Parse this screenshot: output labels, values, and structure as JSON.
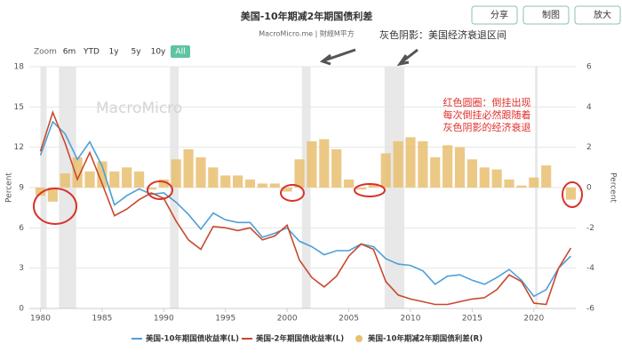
{
  "toolbar": [
    "分享",
    "制图",
    "放大"
  ],
  "zoom": {
    "label": "Zoom",
    "buttons": [
      "6m",
      "YTD",
      "1y",
      "5y",
      "10y",
      "All"
    ]
  },
  "watermark": "MacroMicro",
  "chart_data": {
    "type": "line",
    "title": "美国-10年期减2年期国债利差",
    "subtitle": "MacroMicro.me | 財經M平方",
    "x": [
      1980,
      1981,
      1982,
      1983,
      1984,
      1985,
      1986,
      1987,
      1988,
      1989,
      1990,
      1991,
      1992,
      1993,
      1994,
      1995,
      1996,
      1997,
      1998,
      1999,
      2000,
      2001,
      2002,
      2003,
      2004,
      2005,
      2006,
      2007,
      2008,
      2009,
      2010,
      2011,
      2012,
      2013,
      2014,
      2015,
      2016,
      2017,
      2018,
      2019,
      2020,
      2021,
      2022,
      2023
    ],
    "series": [
      {
        "name": "美国-10年期国债收益率(L)",
        "color": "#4e9fd8",
        "type": "line",
        "values": [
          11.4,
          13.9,
          13.0,
          11.1,
          12.4,
          10.6,
          7.7,
          8.4,
          8.9,
          8.5,
          8.6,
          7.9,
          7.0,
          5.9,
          7.1,
          6.6,
          6.4,
          6.4,
          5.3,
          5.6,
          6.0,
          5.0,
          4.6,
          4.0,
          4.3,
          4.3,
          4.8,
          4.6,
          3.7,
          3.3,
          3.2,
          2.8,
          1.8,
          2.4,
          2.5,
          2.1,
          1.8,
          2.3,
          2.9,
          2.1,
          0.9,
          1.4,
          3.0,
          3.9
        ]
      },
      {
        "name": "美国-2年期国债收益率(L)",
        "color": "#c8492e",
        "type": "line",
        "values": [
          11.7,
          14.6,
          12.3,
          9.6,
          11.6,
          9.3,
          6.9,
          7.4,
          8.1,
          8.6,
          8.2,
          6.5,
          5.1,
          4.4,
          6.1,
          6.0,
          5.8,
          6.0,
          5.1,
          5.4,
          6.2,
          3.6,
          2.3,
          1.6,
          2.4,
          3.9,
          4.8,
          4.4,
          2.0,
          1.0,
          0.7,
          0.5,
          0.3,
          0.3,
          0.5,
          0.7,
          0.8,
          1.4,
          2.5,
          2.0,
          0.4,
          0.3,
          3.0,
          4.5
        ]
      },
      {
        "name": "美国-10年期减2年期国债利差(R)",
        "color": "#e8c070",
        "type": "bar",
        "axis": "y2",
        "values": [
          -0.4,
          -0.7,
          0.7,
          1.5,
          0.8,
          1.3,
          0.8,
          1.0,
          0.8,
          -0.1,
          0.4,
          1.4,
          1.9,
          1.5,
          1.0,
          0.6,
          0.6,
          0.4,
          0.2,
          0.2,
          -0.2,
          1.4,
          2.3,
          2.4,
          1.9,
          0.4,
          -0.1,
          0.2,
          1.7,
          2.3,
          2.5,
          2.3,
          1.5,
          2.1,
          2.0,
          1.4,
          1.0,
          0.9,
          0.4,
          0.1,
          0.5,
          1.1,
          0.0,
          -0.6
        ]
      }
    ],
    "recessions": [
      [
        1980.0,
        1980.5
      ],
      [
        1981.5,
        1982.9
      ],
      [
        1990.5,
        1991.2
      ],
      [
        2001.2,
        2001.9
      ],
      [
        2007.9,
        2009.5
      ],
      [
        2020.1,
        2020.3
      ]
    ],
    "ylabel": "Percent",
    "y2label": "Percent",
    "xlim": [
      1979.1,
      2023.4
    ],
    "xticks": [
      1980,
      1985,
      1990,
      1995,
      2000,
      2005,
      2010,
      2015,
      2020
    ],
    "ylim": [
      0,
      18
    ],
    "yticks": [
      0,
      3,
      6,
      9,
      12,
      15,
      18
    ],
    "y2lim": [
      -6,
      6
    ],
    "y2ticks": [
      -6,
      -4,
      -2,
      0,
      2,
      4,
      6
    ],
    "grid": true,
    "annotations": {
      "gray": "灰色阴影：美国经济衰退区间",
      "red": [
        "红色圆圈：倒挂出现",
        "每次倒挂必然跟随着",
        "灰色阴影的经济衰退"
      ]
    }
  }
}
